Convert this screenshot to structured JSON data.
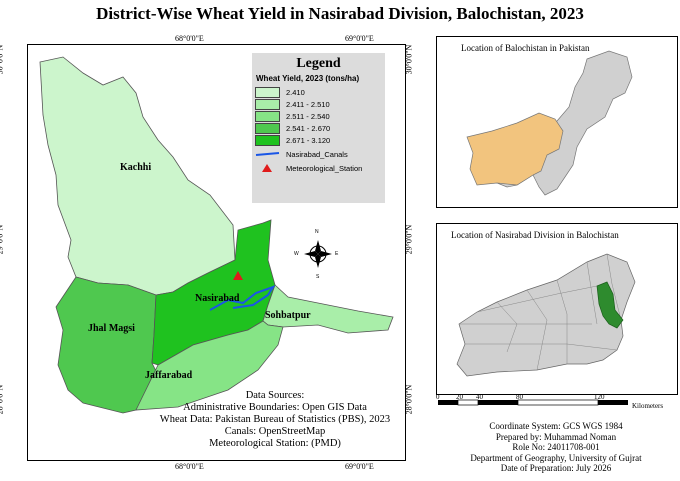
{
  "title": "District-Wise Wheat Yield in Nasirabad Division, Balochistan, 2023",
  "main_map": {
    "lon_ticks": [
      "68°0'0\"E",
      "69°0'0\"E"
    ],
    "lat_ticks": [
      "30°0'0\"N",
      "29°0'0\"N",
      "28°0'0\"N"
    ],
    "districts": [
      {
        "name": "Kachhi",
        "class": "2.410",
        "color": "#ccf5cc"
      },
      {
        "name": "Jhal Magsi",
        "class": "2.541 - 2.670",
        "color": "#4fc84f"
      },
      {
        "name": "Nasirabad",
        "class": "2.671 - 3.120",
        "color": "#1fc21f"
      },
      {
        "name": "Sohbatpur",
        "class": "2.411 - 2.510",
        "color": "#a9eea9"
      },
      {
        "name": "Jaffarabad",
        "class": "2.511 - 2.540",
        "color": "#86e486"
      }
    ],
    "north_arrow": {
      "n": "N",
      "s": "S",
      "e": "E",
      "w": "W"
    }
  },
  "legend": {
    "title": "Legend",
    "subtitle": "Wheat Yield, 2023 (tons/ha)",
    "classes": [
      {
        "label": "2.410",
        "color": "#ccf5cc"
      },
      {
        "label": "2.411 - 2.510",
        "color": "#a9eea9"
      },
      {
        "label": "2.511 - 2.540",
        "color": "#86e486"
      },
      {
        "label": "2.541 - 2.670",
        "color": "#4fc84f"
      },
      {
        "label": "2.671 - 3.120",
        "color": "#1fc21f"
      }
    ],
    "canals_label": "Nasirabad_Canals",
    "canals_color": "#1a56e6",
    "station_label": "Meteorological_Station",
    "station_color": "#e01b1b"
  },
  "sources": {
    "heading": "Data Sources:",
    "lines": [
      "Administrative Boundaries: Open GIS Data",
      "Wheat Data: Pakistan Bureau of Statistics (PBS), 2023",
      "Canals: OpenStreetMap",
      "Meteorological Station:  (PMD)"
    ]
  },
  "inset1": {
    "title": "Location of Balochistan in Pakistan",
    "highlight_color": "#f2c47e",
    "base_color": "#d0d0d0"
  },
  "inset2": {
    "title": "Location of Nasirabad Division in Balochistan",
    "highlight_color": "#2e8b2e",
    "base_color": "#d0d0d0"
  },
  "scale": {
    "ticks": [
      "0",
      "20",
      "40",
      "80",
      "120"
    ],
    "unit": "Kilometers"
  },
  "info": {
    "lines": [
      "Coordinate System: GCS WGS 1984",
      "Prepared by: Muhammad Noman",
      "Role No: 24011708-001",
      "Department of Geography, University of Gujrat",
      "Date of Preparation: July 2026"
    ]
  }
}
